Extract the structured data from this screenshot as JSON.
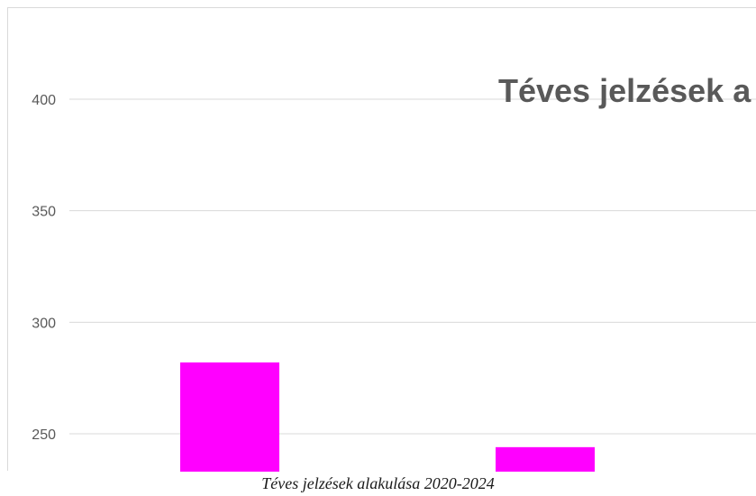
{
  "chart_data": {
    "type": "bar",
    "title": "Téves jelzések a",
    "y_ticks": [
      "400",
      "350",
      "300",
      "250"
    ],
    "ylim": [
      232,
      425
    ],
    "series": [
      {
        "values": [
          282,
          244
        ],
        "color": "#ff00ff"
      }
    ],
    "grid": true,
    "legend": "none"
  },
  "caption": "Téves jelzések alakulása 2020-2024"
}
